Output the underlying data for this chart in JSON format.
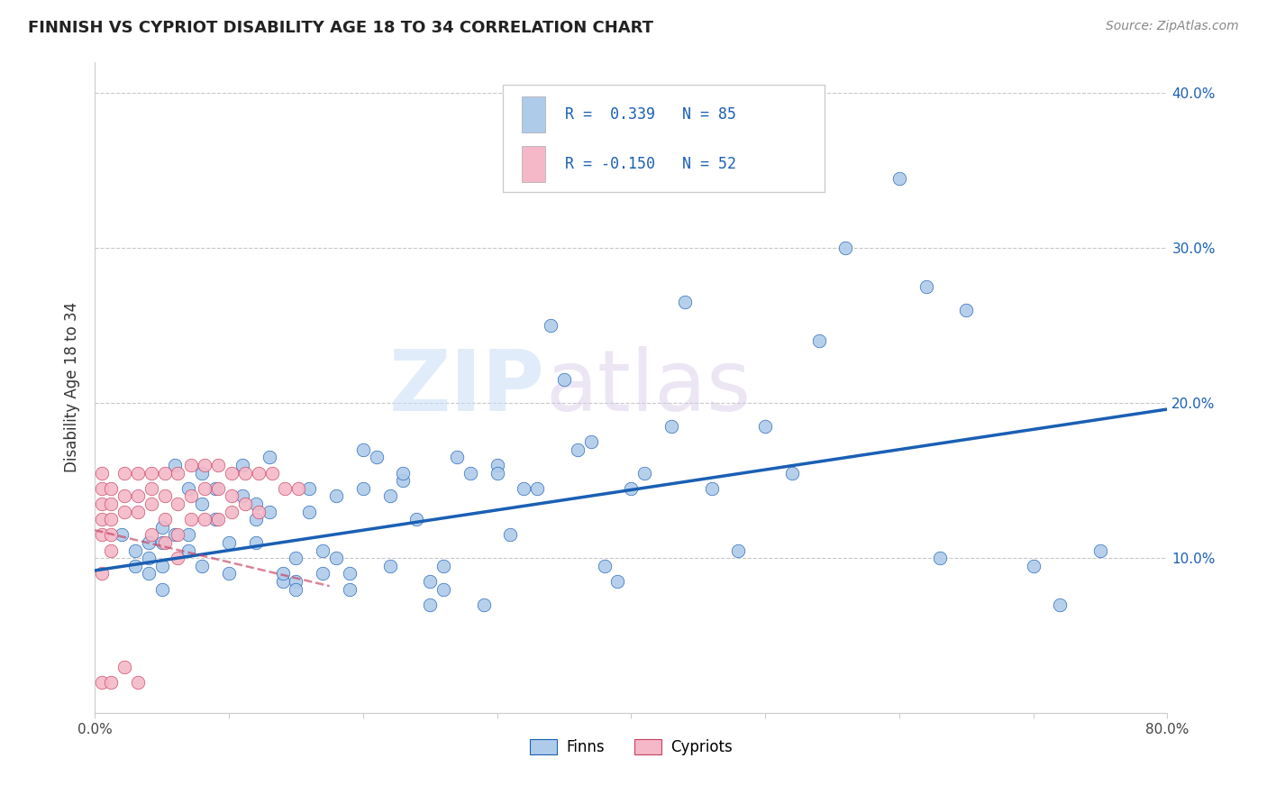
{
  "title": "FINNISH VS CYPRIOT DISABILITY AGE 18 TO 34 CORRELATION CHART",
  "source": "Source: ZipAtlas.com",
  "ylabel": "Disability Age 18 to 34",
  "xlim": [
    0.0,
    0.8
  ],
  "ylim": [
    0.0,
    0.42
  ],
  "xticks": [
    0.0,
    0.1,
    0.2,
    0.3,
    0.4,
    0.5,
    0.6,
    0.7,
    0.8
  ],
  "xticklabels": [
    "0.0%",
    "",
    "",
    "",
    "",
    "",
    "",
    "",
    "80.0%"
  ],
  "yticks": [
    0.0,
    0.1,
    0.2,
    0.3,
    0.4
  ],
  "yticklabels": [
    "",
    "10.0%",
    "20.0%",
    "30.0%",
    "40.0%"
  ],
  "legend_r_finns": " 0.339",
  "legend_n_finns": "85",
  "legend_r_cypriots": "-0.150",
  "legend_n_cypriots": "52",
  "finns_color": "#aecbea",
  "finns_line_color": "#1a5fb4",
  "cypriots_color": "#f4b8c8",
  "cypriots_line_color": "#c84060",
  "watermark_zip": "ZIP",
  "watermark_atlas": "atlas",
  "finns_scatter_x": [
    0.02,
    0.03,
    0.03,
    0.04,
    0.04,
    0.04,
    0.05,
    0.05,
    0.05,
    0.05,
    0.06,
    0.06,
    0.07,
    0.07,
    0.07,
    0.08,
    0.08,
    0.08,
    0.09,
    0.09,
    0.1,
    0.1,
    0.11,
    0.11,
    0.12,
    0.12,
    0.12,
    0.13,
    0.13,
    0.14,
    0.14,
    0.15,
    0.15,
    0.15,
    0.16,
    0.16,
    0.17,
    0.17,
    0.18,
    0.18,
    0.19,
    0.19,
    0.2,
    0.2,
    0.21,
    0.22,
    0.22,
    0.23,
    0.23,
    0.24,
    0.25,
    0.25,
    0.26,
    0.26,
    0.27,
    0.28,
    0.29,
    0.3,
    0.3,
    0.31,
    0.32,
    0.33,
    0.34,
    0.35,
    0.36,
    0.37,
    0.38,
    0.39,
    0.4,
    0.41,
    0.43,
    0.44,
    0.46,
    0.48,
    0.5,
    0.52,
    0.54,
    0.56,
    0.6,
    0.62,
    0.63,
    0.65,
    0.7,
    0.72,
    0.75
  ],
  "finns_scatter_y": [
    0.115,
    0.095,
    0.105,
    0.1,
    0.09,
    0.11,
    0.095,
    0.08,
    0.11,
    0.12,
    0.115,
    0.16,
    0.115,
    0.105,
    0.145,
    0.095,
    0.135,
    0.155,
    0.125,
    0.145,
    0.09,
    0.11,
    0.14,
    0.16,
    0.11,
    0.125,
    0.135,
    0.13,
    0.165,
    0.085,
    0.09,
    0.085,
    0.08,
    0.1,
    0.13,
    0.145,
    0.09,
    0.105,
    0.14,
    0.1,
    0.08,
    0.09,
    0.17,
    0.145,
    0.165,
    0.095,
    0.14,
    0.15,
    0.155,
    0.125,
    0.07,
    0.085,
    0.08,
    0.095,
    0.165,
    0.155,
    0.07,
    0.16,
    0.155,
    0.115,
    0.145,
    0.145,
    0.25,
    0.215,
    0.17,
    0.175,
    0.095,
    0.085,
    0.145,
    0.155,
    0.185,
    0.265,
    0.145,
    0.105,
    0.185,
    0.155,
    0.24,
    0.3,
    0.345,
    0.275,
    0.1,
    0.26,
    0.095,
    0.07,
    0.105
  ],
  "cypriots_scatter_x": [
    0.005,
    0.005,
    0.005,
    0.005,
    0.005,
    0.005,
    0.005,
    0.012,
    0.012,
    0.012,
    0.012,
    0.012,
    0.012,
    0.022,
    0.022,
    0.022,
    0.022,
    0.032,
    0.032,
    0.032,
    0.032,
    0.042,
    0.042,
    0.042,
    0.042,
    0.052,
    0.052,
    0.052,
    0.052,
    0.062,
    0.062,
    0.062,
    0.062,
    0.072,
    0.072,
    0.072,
    0.082,
    0.082,
    0.082,
    0.092,
    0.092,
    0.092,
    0.102,
    0.102,
    0.102,
    0.112,
    0.112,
    0.122,
    0.122,
    0.132,
    0.142,
    0.152
  ],
  "cypriots_scatter_y": [
    0.155,
    0.145,
    0.135,
    0.125,
    0.115,
    0.09,
    0.02,
    0.145,
    0.135,
    0.125,
    0.115,
    0.105,
    0.02,
    0.155,
    0.14,
    0.13,
    0.03,
    0.155,
    0.14,
    0.13,
    0.02,
    0.155,
    0.145,
    0.135,
    0.115,
    0.155,
    0.14,
    0.125,
    0.11,
    0.155,
    0.135,
    0.115,
    0.1,
    0.16,
    0.14,
    0.125,
    0.16,
    0.145,
    0.125,
    0.16,
    0.145,
    0.125,
    0.155,
    0.14,
    0.13,
    0.155,
    0.135,
    0.155,
    0.13,
    0.155,
    0.145,
    0.145
  ],
  "finns_trend_x": [
    0.0,
    0.8
  ],
  "finns_trend_y": [
    0.092,
    0.196
  ],
  "cypriots_trend_x": [
    0.0,
    0.175
  ],
  "cypriots_trend_y": [
    0.118,
    0.082
  ]
}
